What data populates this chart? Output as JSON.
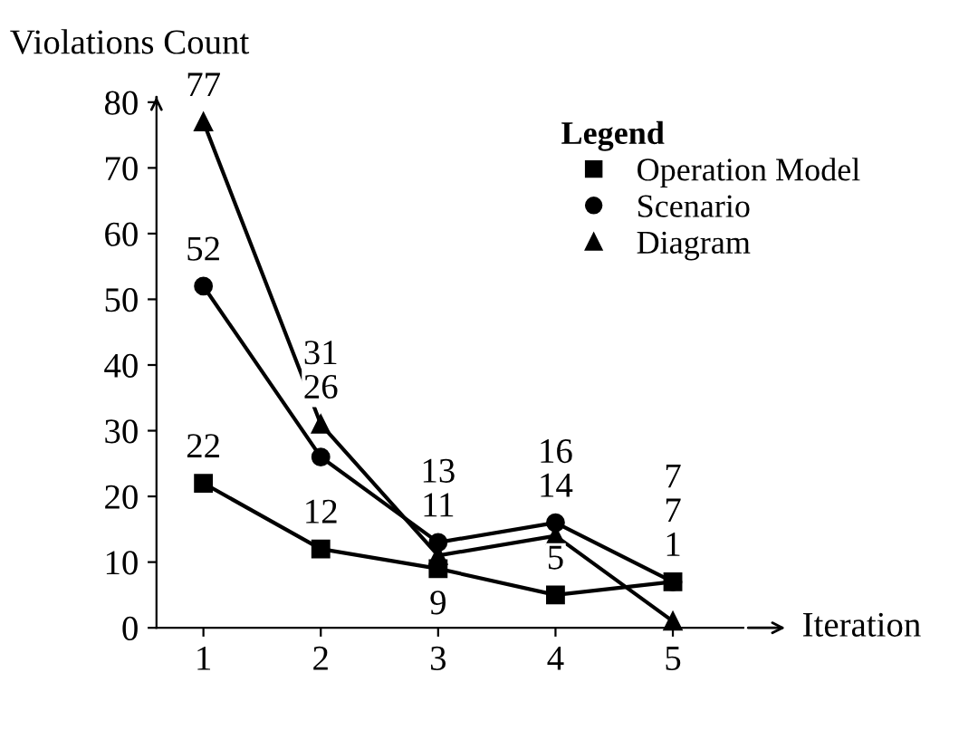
{
  "chart_data": {
    "type": "line",
    "xlabel": "Iteration",
    "ylabel": "Violations Count",
    "legend_title": "Legend",
    "legend": "top right",
    "categories": [
      "1",
      "2",
      "3",
      "4",
      "5"
    ],
    "ylim": [
      0,
      80
    ],
    "yticks": [
      0,
      10,
      20,
      30,
      40,
      50,
      60,
      70,
      80
    ],
    "data_labels": true,
    "grid": false,
    "line_style": "solid",
    "series": [
      {
        "name": "Operation Model",
        "color": "#000000",
        "marker": "square",
        "values": [
          22,
          12,
          9,
          5,
          7
        ]
      },
      {
        "name": "Scenario",
        "color": "#000000",
        "marker": "circle",
        "values": [
          52,
          26,
          13,
          16,
          7
        ]
      },
      {
        "name": "Diagram",
        "color": "#000000",
        "marker": "triangle",
        "values": [
          77,
          31,
          11,
          14,
          1
        ]
      }
    ]
  }
}
